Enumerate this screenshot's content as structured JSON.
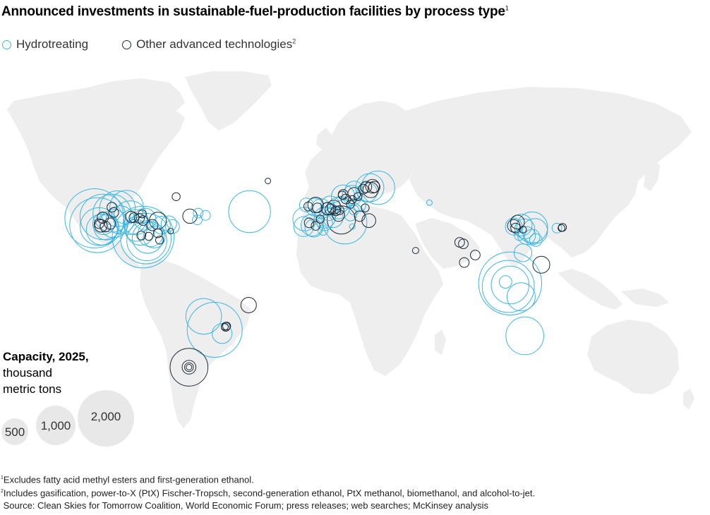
{
  "title": "Announced investments in sustainable-fuel-production facilities by process type",
  "title_note": "1",
  "legend": {
    "hydrotreating": {
      "label": "Hydrotreating",
      "color": "#3bb6e6"
    },
    "other": {
      "label": "Other advanced technologies",
      "note": "2",
      "color": "#1f2a36"
    }
  },
  "colors": {
    "land": "#eeeeee",
    "size_bubble": "#e8e8e8"
  },
  "size_legend": {
    "title": "Capacity, 2025,",
    "subtitle_line1": "thousand",
    "subtitle_line2": "metric tons",
    "values": [
      "500",
      "1,000",
      "2,000"
    ]
  },
  "footnotes": {
    "note1_marker": "1",
    "note1": "Excludes fatty acid methyl esters and first-generation ethanol.",
    "note2_marker": "2",
    "note2": "Includes gasification, power-to-X (PtX) Fischer-Tropsch, second-generation ethanol, PtX methanol, biomethanol, and alcohol-to-jet.",
    "source": "Source: Clean Skies for Tomorrow Coalition, World Economic Forum; press releases; web searches; McKinsey analysis"
  },
  "facilities": [
    {
      "type": "hydrotreating",
      "lon": -122.5,
      "lat": 45.5,
      "capacity": 2200
    },
    {
      "type": "hydrotreating",
      "lon": -121.0,
      "lat": 41.0,
      "capacity": 1900
    },
    {
      "type": "hydrotreating",
      "lon": -118.0,
      "lat": 46.5,
      "capacity": 1300
    },
    {
      "type": "hydrotreating",
      "lon": -120.0,
      "lat": 40.0,
      "capacity": 900
    },
    {
      "type": "hydrotreating",
      "lon": -118.5,
      "lat": 38.0,
      "capacity": 600
    },
    {
      "type": "hydrotreating",
      "lon": -117.5,
      "lat": 42.0,
      "capacity": 300
    },
    {
      "type": "hydrotreating",
      "lon": -116.0,
      "lat": 39.5,
      "capacity": 400
    },
    {
      "type": "hydrotreating",
      "lon": -113.0,
      "lat": 49.0,
      "capacity": 900
    },
    {
      "type": "hydrotreating",
      "lon": -110.0,
      "lat": 52.0,
      "capacity": 800
    },
    {
      "type": "hydrotreating",
      "lon": -105.0,
      "lat": 53.0,
      "capacity": 700
    },
    {
      "type": "hydrotreating",
      "lon": -112.0,
      "lat": 42.0,
      "capacity": 500
    },
    {
      "type": "hydrotreating",
      "lon": -108.5,
      "lat": 44.5,
      "capacity": 500
    },
    {
      "type": "hydrotreating",
      "lon": -103.0,
      "lat": 46.0,
      "capacity": 700
    },
    {
      "type": "hydrotreating",
      "lon": -100.0,
      "lat": 43.0,
      "capacity": 400
    },
    {
      "type": "hydrotreating",
      "lon": -95.0,
      "lat": 45.0,
      "capacity": 300
    },
    {
      "type": "hydrotreating",
      "lon": -96.0,
      "lat": 33.0,
      "capacity": 2400
    },
    {
      "type": "hydrotreating",
      "lon": -94.5,
      "lat": 32.0,
      "capacity": 1600
    },
    {
      "type": "hydrotreating",
      "lon": -94.0,
      "lat": 30.5,
      "capacity": 1000
    },
    {
      "type": "hydrotreating",
      "lon": -93.5,
      "lat": 32.5,
      "capacity": 600
    },
    {
      "type": "hydrotreating",
      "lon": -97.5,
      "lat": 37.0,
      "capacity": 500
    },
    {
      "type": "hydrotreating",
      "lon": -92.0,
      "lat": 35.0,
      "capacity": 400
    },
    {
      "type": "hydrotreating",
      "lon": -90.0,
      "lat": 33.0,
      "capacity": 300
    },
    {
      "type": "hydrotreating",
      "lon": -100.0,
      "lat": 37.5,
      "capacity": 300
    },
    {
      "type": "hydrotreating",
      "lon": -86.0,
      "lat": 41.0,
      "capacity": 200
    },
    {
      "type": "hydrotreating",
      "lon": -82.0,
      "lat": 42.0,
      "capacity": 150
    },
    {
      "type": "hydrotreating",
      "lon": -80.0,
      "lat": 40.0,
      "capacity": 120
    },
    {
      "type": "hydrotreating",
      "lon": -66.5,
      "lat": 44.5,
      "capacity": 60
    },
    {
      "type": "hydrotreating",
      "lon": -62.0,
      "lat": 47.5,
      "capacity": 60
    },
    {
      "type": "hydrotreating",
      "lon": -66.0,
      "lat": 49.0,
      "capacity": 60
    },
    {
      "type": "hydrotreating",
      "lon": -38.0,
      "lat": 50.0,
      "capacity": 1100
    },
    {
      "type": "other",
      "lon": -118.0,
      "lat": 46.0,
      "capacity": 80
    },
    {
      "type": "other",
      "lon": -113.0,
      "lat": 53.0,
      "capacity": 60
    },
    {
      "type": "other",
      "lon": -112.0,
      "lat": 49.5,
      "capacity": 60
    },
    {
      "type": "other",
      "lon": -114.0,
      "lat": 42.0,
      "capacity": 80
    },
    {
      "type": "other",
      "lon": -120.0,
      "lat": 42.0,
      "capacity": 60
    },
    {
      "type": "other",
      "lon": -119.0,
      "lat": 40.5,
      "capacity": 100
    },
    {
      "type": "other",
      "lon": -116.5,
      "lat": 40.0,
      "capacity": 70
    },
    {
      "type": "other",
      "lon": -102.5,
      "lat": 46.5,
      "capacity": 80
    },
    {
      "type": "other",
      "lon": -101.0,
      "lat": 46.0,
      "capacity": 60
    },
    {
      "type": "other",
      "lon": -98.0,
      "lat": 45.5,
      "capacity": 60
    },
    {
      "type": "other",
      "lon": -96.5,
      "lat": 48.5,
      "capacity": 40
    },
    {
      "type": "other",
      "lon": -96.0,
      "lat": 44.0,
      "capacity": 60
    },
    {
      "type": "other",
      "lon": -88.0,
      "lat": 44.0,
      "capacity": 180
    },
    {
      "type": "other",
      "lon": -91.0,
      "lat": 41.0,
      "capacity": 80
    },
    {
      "type": "other",
      "lon": -97.0,
      "lat": 34.0,
      "capacity": 50
    },
    {
      "type": "other",
      "lon": -93.0,
      "lat": 33.5,
      "capacity": 40
    },
    {
      "type": "other",
      "lon": -88.0,
      "lat": 35.5,
      "capacity": 50
    },
    {
      "type": "other",
      "lon": -87.0,
      "lat": 31.0,
      "capacity": 40
    },
    {
      "type": "other",
      "lon": -81.0,
      "lat": 37.0,
      "capacity": 20
    },
    {
      "type": "other",
      "lon": -70.5,
      "lat": 47.0,
      "capacity": 130
    },
    {
      "type": "other",
      "lon": -78.0,
      "lat": 60.0,
      "capacity": 40
    },
    {
      "type": "other",
      "lon": -28.0,
      "lat": 70.5,
      "capacity": 20
    },
    {
      "type": "hydrotreating",
      "lon": -8.0,
      "lat": 45.0,
      "capacity": 350
    },
    {
      "type": "hydrotreating",
      "lon": -8.5,
      "lat": 40.0,
      "capacity": 250
    },
    {
      "type": "hydrotreating",
      "lon": -4.0,
      "lat": 41.0,
      "capacity": 300
    },
    {
      "type": "hydrotreating",
      "lon": -3.0,
      "lat": 39.0,
      "capacity": 200
    },
    {
      "type": "hydrotreating",
      "lon": -7.0,
      "lat": 54.5,
      "capacity": 120
    },
    {
      "type": "hydrotreating",
      "lon": -2.5,
      "lat": 53.0,
      "capacity": 200
    },
    {
      "type": "hydrotreating",
      "lon": 1.0,
      "lat": 52.0,
      "capacity": 250
    },
    {
      "type": "hydrotreating",
      "lon": 3.0,
      "lat": 46.0,
      "capacity": 280
    },
    {
      "type": "hydrotreating",
      "lon": 5.0,
      "lat": 50.0,
      "capacity": 200
    },
    {
      "type": "hydrotreating",
      "lon": 3.0,
      "lat": 42.5,
      "capacity": 150
    },
    {
      "type": "hydrotreating",
      "lon": 7.5,
      "lat": 46.0,
      "capacity": 250
    },
    {
      "type": "hydrotreating",
      "lon": 6.0,
      "lat": 54.0,
      "capacity": 230
    },
    {
      "type": "hydrotreating",
      "lon": 10.5,
      "lat": 52.5,
      "capacity": 300
    },
    {
      "type": "hydrotreating",
      "lon": 12.0,
      "lat": 55.0,
      "capacity": 150
    },
    {
      "type": "hydrotreating",
      "lon": 13.0,
      "lat": 60.0,
      "capacity": 350
    },
    {
      "type": "hydrotreating",
      "lon": 18.0,
      "lat": 61.0,
      "capacity": 250
    },
    {
      "type": "hydrotreating",
      "lon": 19.0,
      "lat": 64.5,
      "capacity": 200
    },
    {
      "type": "hydrotreating",
      "lon": 26.0,
      "lat": 63.0,
      "capacity": 250
    },
    {
      "type": "hydrotreating",
      "lon": 27.5,
      "lat": 66.0,
      "capacity": 500
    },
    {
      "type": "hydrotreating",
      "lon": 32.0,
      "lat": 66.0,
      "capacity": 700
    },
    {
      "type": "hydrotreating",
      "lon": 14.0,
      "lat": 43.0,
      "capacity": 1200
    },
    {
      "type": "hydrotreating",
      "lon": 17.0,
      "lat": 48.0,
      "capacity": 100
    },
    {
      "type": "hydrotreating",
      "lon": 22.0,
      "lat": 54.0,
      "capacity": 90
    },
    {
      "type": "hydrotreating",
      "lon": 19.0,
      "lat": 51.0,
      "capacity": 60
    },
    {
      "type": "hydrotreating",
      "lon": 2.0,
      "lat": 37.5,
      "capacity": 60
    },
    {
      "type": "hydrotreating",
      "lon": 18.0,
      "lat": 40.0,
      "capacity": 20
    },
    {
      "type": "hydrotreating",
      "lon": 60.0,
      "lat": 56.0,
      "capacity": 20
    },
    {
      "type": "other",
      "lon": -6.0,
      "lat": 53.5,
      "capacity": 50
    },
    {
      "type": "other",
      "lon": -2.0,
      "lat": 54.5,
      "capacity": 150
    },
    {
      "type": "other",
      "lon": -1.0,
      "lat": 52.5,
      "capacity": 60
    },
    {
      "type": "other",
      "lon": -5.5,
      "lat": 42.5,
      "capacity": 60
    },
    {
      "type": "other",
      "lon": -2.0,
      "lat": 40.5,
      "capacity": 50
    },
    {
      "type": "other",
      "lon": 0.5,
      "lat": 45.0,
      "capacity": 40
    },
    {
      "type": "other",
      "lon": 4.5,
      "lat": 52.0,
      "capacity": 100
    },
    {
      "type": "other",
      "lon": 6.0,
      "lat": 51.5,
      "capacity": 70
    },
    {
      "type": "other",
      "lon": 8.0,
      "lat": 53.0,
      "capacity": 120
    },
    {
      "type": "other",
      "lon": 9.0,
      "lat": 50.5,
      "capacity": 60
    },
    {
      "type": "other",
      "lon": 10.5,
      "lat": 47.5,
      "capacity": 90
    },
    {
      "type": "other",
      "lon": 11.0,
      "lat": 51.0,
      "capacity": 50
    },
    {
      "type": "other",
      "lon": 12.0,
      "lat": 44.5,
      "capacity": 500
    },
    {
      "type": "other",
      "lon": 13.0,
      "lat": 61.5,
      "capacity": 60
    },
    {
      "type": "other",
      "lon": 12.5,
      "lat": 61.0,
      "capacity": 40
    },
    {
      "type": "other",
      "lon": 14.5,
      "lat": 58.5,
      "capacity": 60
    },
    {
      "type": "other",
      "lon": 17.0,
      "lat": 55.0,
      "capacity": 40
    },
    {
      "type": "other",
      "lon": 18.0,
      "lat": 58.0,
      "capacity": 40
    },
    {
      "type": "other",
      "lon": 19.0,
      "lat": 62.0,
      "capacity": 100
    },
    {
      "type": "other",
      "lon": 21.0,
      "lat": 60.0,
      "capacity": 40
    },
    {
      "type": "other",
      "lon": 24.0,
      "lat": 65.0,
      "capacity": 60
    },
    {
      "type": "other",
      "lon": 25.5,
      "lat": 66.5,
      "capacity": 80
    },
    {
      "type": "other",
      "lon": 28.0,
      "lat": 64.5,
      "capacity": 150
    },
    {
      "type": "other",
      "lon": 29.0,
      "lat": 67.0,
      "capacity": 120
    },
    {
      "type": "other",
      "lon": 30.0,
      "lat": 66.5,
      "capacity": 80
    },
    {
      "type": "other",
      "lon": 22.0,
      "lat": 47.0,
      "capacity": 70
    },
    {
      "type": "other",
      "lon": 25.0,
      "lat": 52.5,
      "capacity": 40
    },
    {
      "type": "other",
      "lon": 27.0,
      "lat": 44.0,
      "capacity": 120
    },
    {
      "type": "hydrotreating",
      "lon": 106.0,
      "lat": 40.0,
      "capacity": 180
    },
    {
      "type": "hydrotreating",
      "lon": 110.0,
      "lat": 41.0,
      "capacity": 300
    },
    {
      "type": "hydrotreating",
      "lon": 112.0,
      "lat": 38.5,
      "capacity": 250
    },
    {
      "type": "hydrotreating",
      "lon": 116.0,
      "lat": 39.5,
      "capacity": 600
    },
    {
      "type": "hydrotreating",
      "lon": 117.5,
      "lat": 37.0,
      "capacity": 400
    },
    {
      "type": "hydrotreating",
      "lon": 113.0,
      "lat": 34.0,
      "capacity": 200
    },
    {
      "type": "hydrotreating",
      "lon": 116.0,
      "lat": 33.0,
      "capacity": 150
    },
    {
      "type": "hydrotreating",
      "lon": 118.0,
      "lat": 31.0,
      "capacity": 100
    },
    {
      "type": "hydrotreating",
      "lon": 109.0,
      "lat": 34.0,
      "capacity": 60
    },
    {
      "type": "hydrotreating",
      "lon": 129.5,
      "lat": 39.0,
      "capacity": 60
    },
    {
      "type": "hydrotreating",
      "lon": 111.0,
      "lat": 22.5,
      "capacity": 200
    },
    {
      "type": "hydrotreating",
      "lon": 104.0,
      "lat": 2.0,
      "capacity": 2500
    },
    {
      "type": "hydrotreating",
      "lon": 103.0,
      "lat": 0.0,
      "capacity": 1700
    },
    {
      "type": "hydrotreating",
      "lon": 104.0,
      "lat": 1.0,
      "capacity": 900
    },
    {
      "type": "hydrotreating",
      "lon": 101.5,
      "lat": 3.0,
      "capacity": 100
    },
    {
      "type": "hydrotreating",
      "lon": 110.0,
      "lat": -7.0,
      "capacity": 500
    },
    {
      "type": "hydrotreating",
      "lon": 112.0,
      "lat": -33.0,
      "capacity": 900
    },
    {
      "type": "other",
      "lon": 106.0,
      "lat": 40.5,
      "capacity": 100
    },
    {
      "type": "other",
      "lon": 108.0,
      "lat": 43.0,
      "capacity": 120
    },
    {
      "type": "other",
      "lon": 107.0,
      "lat": 39.0,
      "capacity": 60
    },
    {
      "type": "other",
      "lon": 111.0,
      "lat": 38.0,
      "capacity": 30
    },
    {
      "type": "other",
      "lon": 132.5,
      "lat": 39.5,
      "capacity": 40
    },
    {
      "type": "other",
      "lon": 132.0,
      "lat": 39.0,
      "capacity": 30
    },
    {
      "type": "other",
      "lon": 121.0,
      "lat": 14.5,
      "capacity": 180
    },
    {
      "type": "other",
      "lon": 76.5,
      "lat": 29.5,
      "capacity": 60
    },
    {
      "type": "other",
      "lon": 78.5,
      "lat": 28.5,
      "capacity": 60
    },
    {
      "type": "other",
      "lon": 85.0,
      "lat": 21.0,
      "capacity": 60
    },
    {
      "type": "other",
      "lon": 79.0,
      "lat": 16.0,
      "capacity": 60
    },
    {
      "type": "other",
      "lon": 52.5,
      "lat": 24.0,
      "capacity": 25
    },
    {
      "type": "hydrotreating",
      "lon": -63.0,
      "lat": -20.0,
      "capacity": 800
    },
    {
      "type": "hydrotreating",
      "lon": -57.0,
      "lat": -29.0,
      "capacity": 1900
    },
    {
      "type": "hydrotreating",
      "lon": -53.0,
      "lat": -31.5,
      "capacity": 250
    },
    {
      "type": "other",
      "lon": -51.0,
      "lat": -27.0,
      "capacity": 50
    },
    {
      "type": "other",
      "lon": -50.5,
      "lat": -26.5,
      "capacity": 40
    },
    {
      "type": "other",
      "lon": -51.5,
      "lat": -27.0,
      "capacity": 30
    },
    {
      "type": "other",
      "lon": -38.5,
      "lat": -12.5,
      "capacity": 150
    },
    {
      "type": "other",
      "lon": -71.0,
      "lat": -54.0,
      "capacity": 900
    },
    {
      "type": "other",
      "lon": -71.0,
      "lat": -54.0,
      "capacity": 120
    },
    {
      "type": "other",
      "lon": -71.0,
      "lat": -54.0,
      "capacity": 50
    },
    {
      "type": "other",
      "lon": -71.0,
      "lat": -54.0,
      "capacity": 20
    }
  ]
}
